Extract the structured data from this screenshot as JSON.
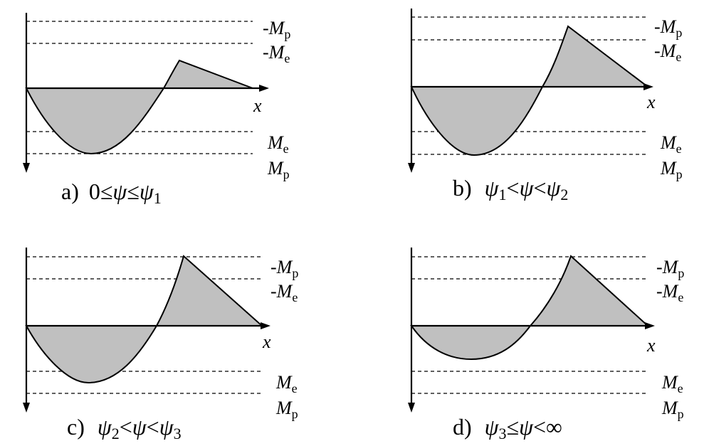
{
  "panels": [
    {
      "key": "a",
      "label_letter": "a)",
      "label_condition": [
        "0",
        "≤",
        "ψ",
        "≤",
        "ψ",
        "1"
      ],
      "level_labels": {
        "neg_mp": "-M",
        "neg_mp_sub": "p",
        "neg_me": "-M",
        "neg_me_sub": "e",
        "me": "M",
        "me_sub": "e",
        "mp": "M",
        "mp_sub": "p"
      },
      "axis_label": "x"
    },
    {
      "key": "b",
      "label_letter": "b)",
      "label_condition": [
        "ψ",
        "1",
        "<",
        "ψ",
        "<",
        "ψ",
        "2"
      ],
      "level_labels": {
        "neg_mp": "-M",
        "neg_mp_sub": "p",
        "neg_me": "-M",
        "neg_me_sub": "e",
        "me": "M",
        "me_sub": "e",
        "mp": "M",
        "mp_sub": "p"
      },
      "axis_label": "x"
    },
    {
      "key": "c",
      "label_letter": "c)",
      "label_condition": [
        "ψ",
        "2",
        "<",
        "ψ",
        "<",
        "ψ",
        "3"
      ],
      "level_labels": {
        "neg_mp": "-M",
        "neg_mp_sub": "p",
        "neg_me": "-M",
        "neg_me_sub": "e",
        "me": "M",
        "me_sub": "e",
        "mp": "M",
        "mp_sub": "p"
      },
      "axis_label": "x"
    },
    {
      "key": "d",
      "label_letter": "d)",
      "label_condition": [
        "ψ",
        "3",
        "≤",
        "ψ",
        "<",
        "∞"
      ],
      "level_labels": {
        "neg_mp": "-M",
        "neg_mp_sub": "p",
        "neg_me": "-M",
        "neg_me_sub": "e",
        "me": "M",
        "me_sub": "e",
        "mp": "M",
        "mp_sub": "p"
      },
      "axis_label": "x"
    }
  ],
  "colors": {
    "fill": "#c0c0c0",
    "stroke": "#000000",
    "background": "#ffffff"
  }
}
